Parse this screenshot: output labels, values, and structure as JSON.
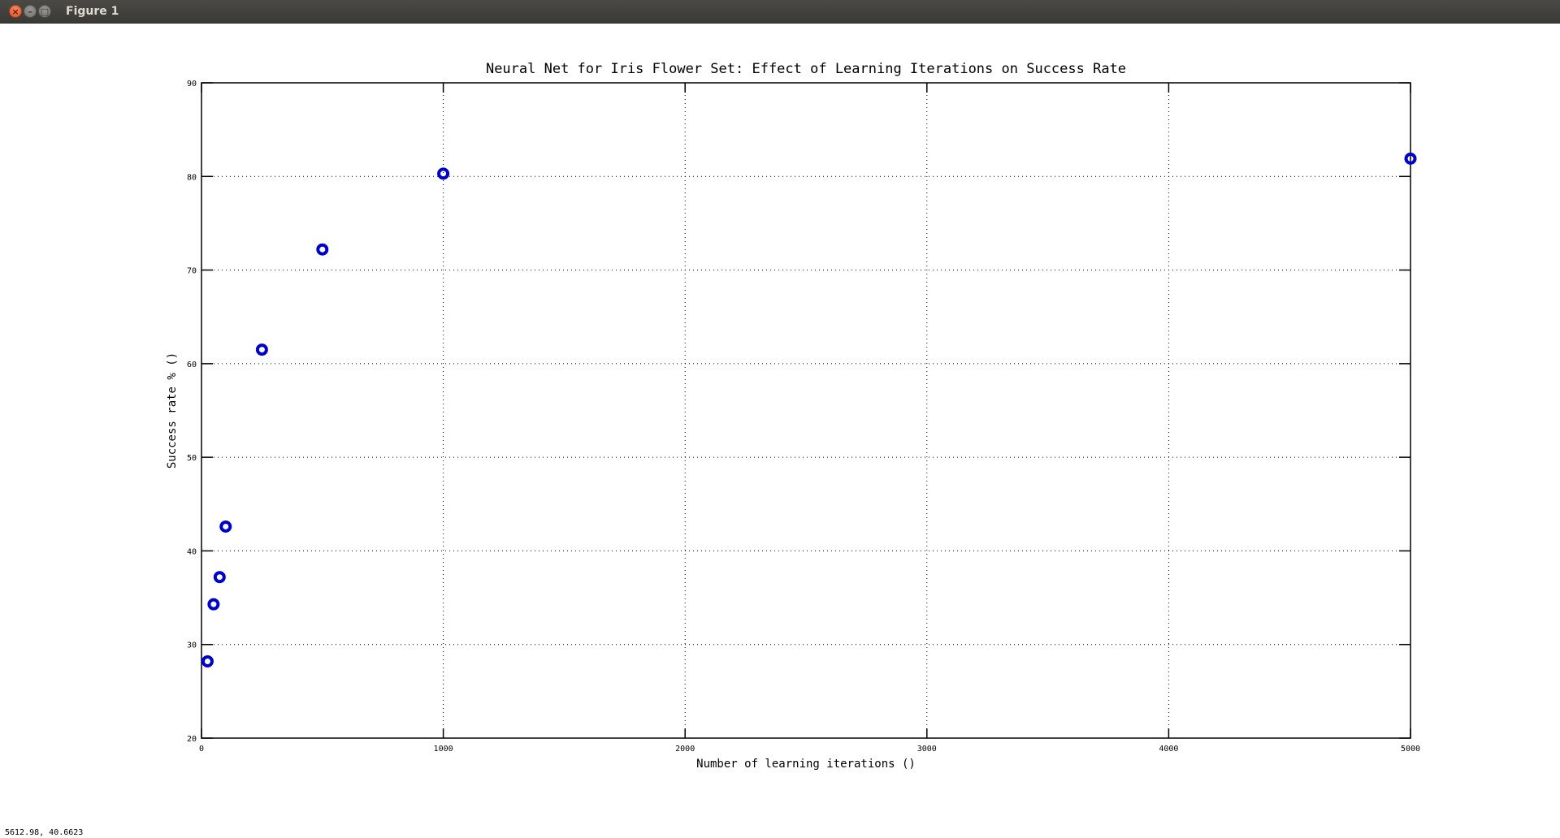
{
  "window": {
    "title": "Figure 1",
    "buttons": {
      "close": "×",
      "minimize": "–",
      "maximize": "□"
    }
  },
  "status": {
    "coordinates": "5612.98,  40.6623"
  },
  "colors": {
    "marker": "#0000cc",
    "axis": "#000000",
    "grid": "#000000"
  },
  "chart_data": {
    "type": "scatter",
    "title": "Neural Net for Iris Flower Set: Effect of Learning Iterations on Success Rate",
    "xlabel": "Number of learning iterations ()",
    "ylabel": "Success rate % ()",
    "xlim": [
      0,
      5000
    ],
    "ylim": [
      20,
      90
    ],
    "xticks": [
      0,
      1000,
      2000,
      3000,
      4000,
      5000
    ],
    "yticks": [
      20,
      30,
      40,
      50,
      60,
      70,
      80,
      90
    ],
    "grid": true,
    "x": [
      25,
      50,
      75,
      100,
      250,
      500,
      1000,
      5000
    ],
    "y": [
      28.2,
      34.3,
      37.2,
      42.6,
      61.5,
      72.2,
      80.3,
      81.9
    ]
  }
}
